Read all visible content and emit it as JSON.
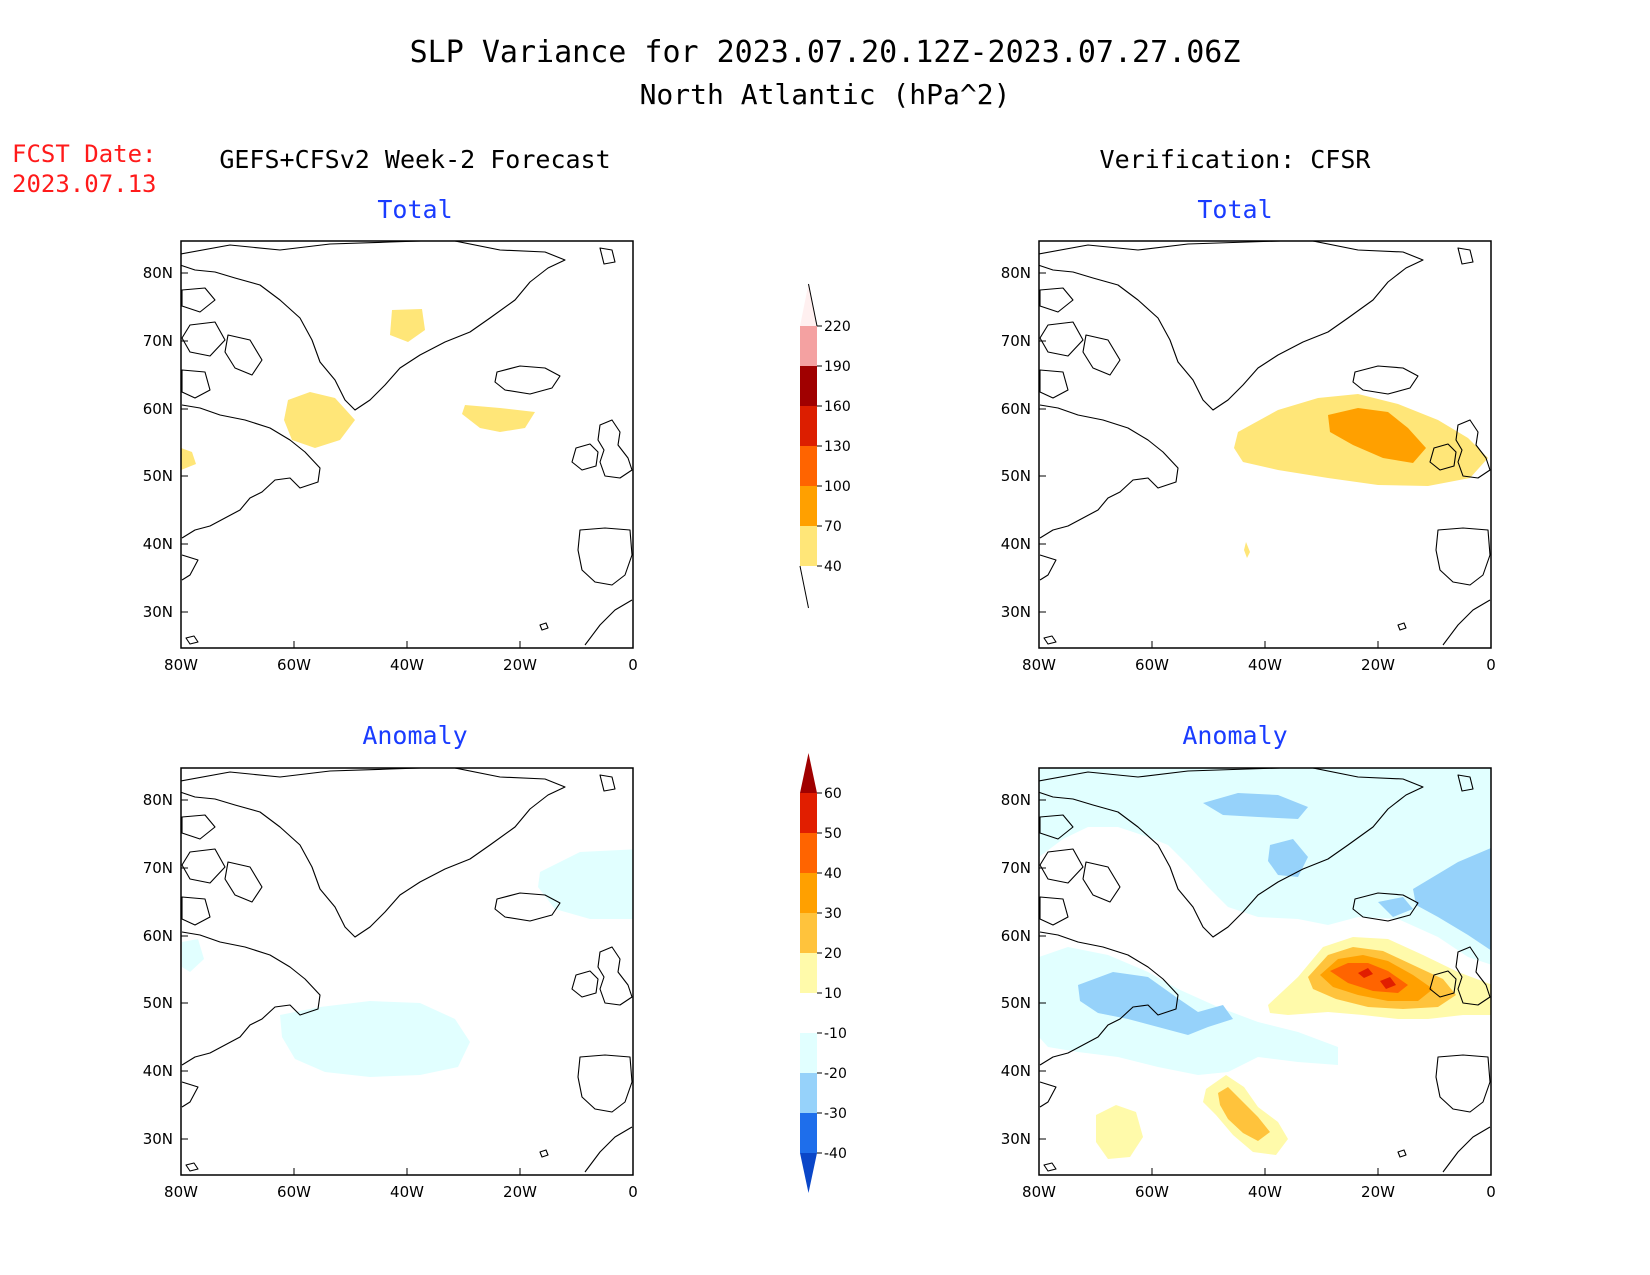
{
  "title": {
    "line1": "SLP Variance for 2023.07.20.12Z-2023.07.27.06Z",
    "line2": "North Atlantic (hPa^2)"
  },
  "fcst": {
    "label": "FCST Date:",
    "date": "2023.07.13"
  },
  "columns": {
    "forecast": "GEFS+CFSv2 Week-2 Forecast",
    "verification": "Verification: CFSR"
  },
  "panel_titles": {
    "total": "Total",
    "anomaly": "Anomaly"
  },
  "axes": {
    "lon_labels": [
      "80W",
      "60W",
      "40W",
      "20W",
      "0"
    ],
    "lat_labels": [
      "80N",
      "70N",
      "60N",
      "50N",
      "40N",
      "30N"
    ]
  },
  "colorbars": {
    "total": {
      "levels": [
        "220",
        "190",
        "160",
        "130",
        "100",
        "70",
        "40"
      ],
      "colors": [
        "#fff0f0",
        "#f4a1a1",
        "#a00000",
        "#dc1e00",
        "#ff6400",
        "#ffa000",
        "#ffe678"
      ]
    },
    "anomaly": {
      "levels": [
        "60",
        "50",
        "40",
        "30",
        "20",
        "10",
        "-10",
        "-20",
        "-30",
        "-40"
      ],
      "colors": [
        "#a00000",
        "#e11e00",
        "#ff6400",
        "#ffa000",
        "#ffc33c",
        "#fffaaa",
        "#ffffff",
        "#e1ffff",
        "#96d2fa",
        "#1e6eeb",
        "#0a46c8"
      ]
    }
  },
  "fill_colors": {
    "yellow": "#ffe678",
    "orange": "#ffa000",
    "light_cyan": "#e1ffff",
    "light_blue": "#96d2fa",
    "pale_yellow": "#fffaaa",
    "gold": "#ffc33c",
    "dark_orange": "#ff6400",
    "red": "#e11e00"
  }
}
